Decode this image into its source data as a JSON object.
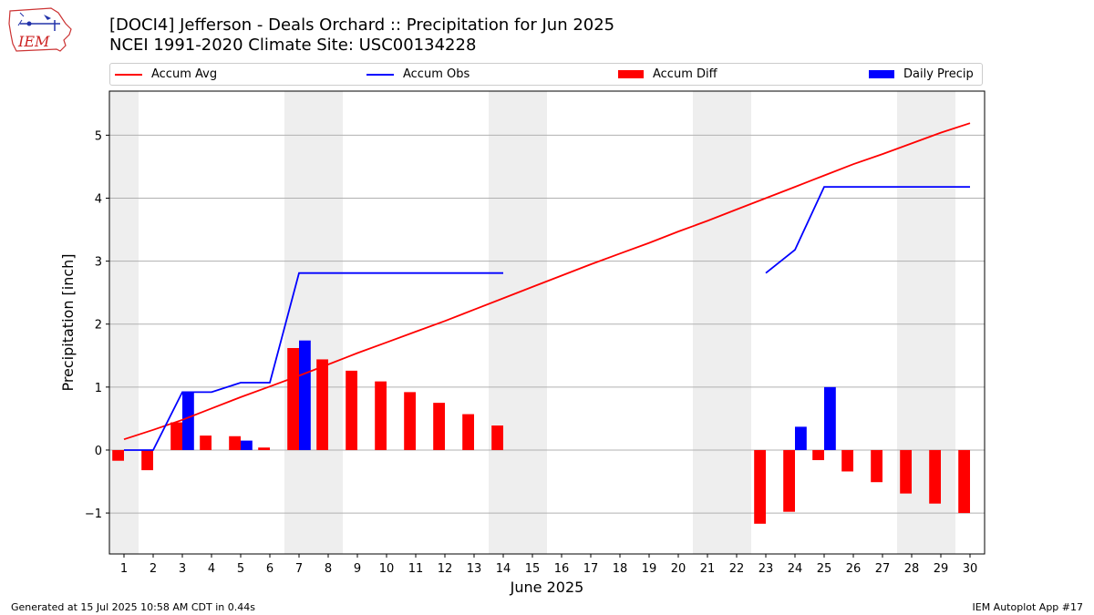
{
  "logo": {
    "text": "IEM"
  },
  "chart_data": {
    "type": "bar",
    "title": "[DOCI4] Jefferson - Deals Orchard :: Precipitation for Jun 2025",
    "subtitle": "NCEI 1991-2020 Climate Site: USC00134228",
    "xlabel": "June 2025",
    "ylabel": "Precipitation [inch]",
    "ylim": [
      -1.65,
      5.7
    ],
    "xlim": [
      0.5,
      30.5
    ],
    "yticks": [
      -1,
      0,
      1,
      2,
      3,
      4,
      5
    ],
    "ytick_labels": [
      "−1",
      "0",
      "1",
      "2",
      "3",
      "4",
      "5"
    ],
    "x": [
      1,
      2,
      3,
      4,
      5,
      6,
      7,
      8,
      9,
      10,
      11,
      12,
      13,
      14,
      15,
      16,
      17,
      18,
      19,
      20,
      21,
      22,
      23,
      24,
      25,
      26,
      27,
      28,
      29,
      30
    ],
    "x_labels": [
      "1",
      "2",
      "3",
      "4",
      "5",
      "6",
      "7",
      "8",
      "9",
      "10",
      "11",
      "12",
      "13",
      "14",
      "15",
      "16",
      "17",
      "18",
      "19",
      "20",
      "21",
      "22",
      "23",
      "24",
      "25",
      "26",
      "27",
      "28",
      "29",
      "30"
    ],
    "grid": "horizontal",
    "legend_position": "top",
    "weekend_shading": [
      [
        0.5,
        1.5
      ],
      [
        6.5,
        8.5
      ],
      [
        13.5,
        15.5
      ],
      [
        20.5,
        22.5
      ],
      [
        27.5,
        29.5
      ]
    ],
    "series": [
      {
        "name": "Accum Avg",
        "type": "line",
        "color": "#ff0000",
        "values": [
          0.17,
          0.32,
          0.48,
          0.66,
          0.84,
          1.01,
          1.18,
          1.36,
          1.54,
          1.71,
          1.88,
          2.05,
          2.23,
          2.41,
          2.59,
          2.77,
          2.95,
          3.12,
          3.29,
          3.47,
          3.64,
          3.82,
          4.0,
          4.18,
          4.36,
          4.54,
          4.7,
          4.87,
          5.04,
          5.19
        ]
      },
      {
        "name": "Accum Obs",
        "type": "line",
        "color": "#0000ff",
        "values": [
          0.0,
          0.0,
          0.92,
          0.92,
          1.07,
          1.07,
          2.81,
          2.81,
          2.81,
          2.81,
          2.81,
          2.81,
          2.81,
          2.81,
          null,
          null,
          null,
          null,
          null,
          null,
          null,
          null,
          2.81,
          3.18,
          4.18,
          4.18,
          4.18,
          4.18,
          4.18,
          4.18
        ]
      },
      {
        "name": "Accum Diff",
        "type": "bar",
        "color": "#ff0000",
        "values": [
          -0.17,
          -0.32,
          0.44,
          0.23,
          0.22,
          0.04,
          1.62,
          1.44,
          1.26,
          1.09,
          0.92,
          0.75,
          0.57,
          0.39,
          null,
          null,
          null,
          null,
          null,
          null,
          null,
          null,
          -1.17,
          -0.98,
          -0.16,
          -0.34,
          -0.51,
          -0.69,
          -0.85,
          -1.0
        ]
      },
      {
        "name": "Daily Precip",
        "type": "bar",
        "color": "#0000ff",
        "values": [
          0,
          0,
          0.92,
          0,
          0.15,
          0,
          1.74,
          0,
          0,
          0,
          0,
          0,
          0,
          0,
          null,
          null,
          null,
          null,
          null,
          null,
          null,
          null,
          0,
          0.37,
          1.0,
          0,
          0,
          0,
          0,
          0
        ]
      }
    ]
  },
  "footer": {
    "left": "Generated at 15 Jul 2025 10:58 AM CDT in 0.44s",
    "right": "IEM Autoplot App #17"
  }
}
